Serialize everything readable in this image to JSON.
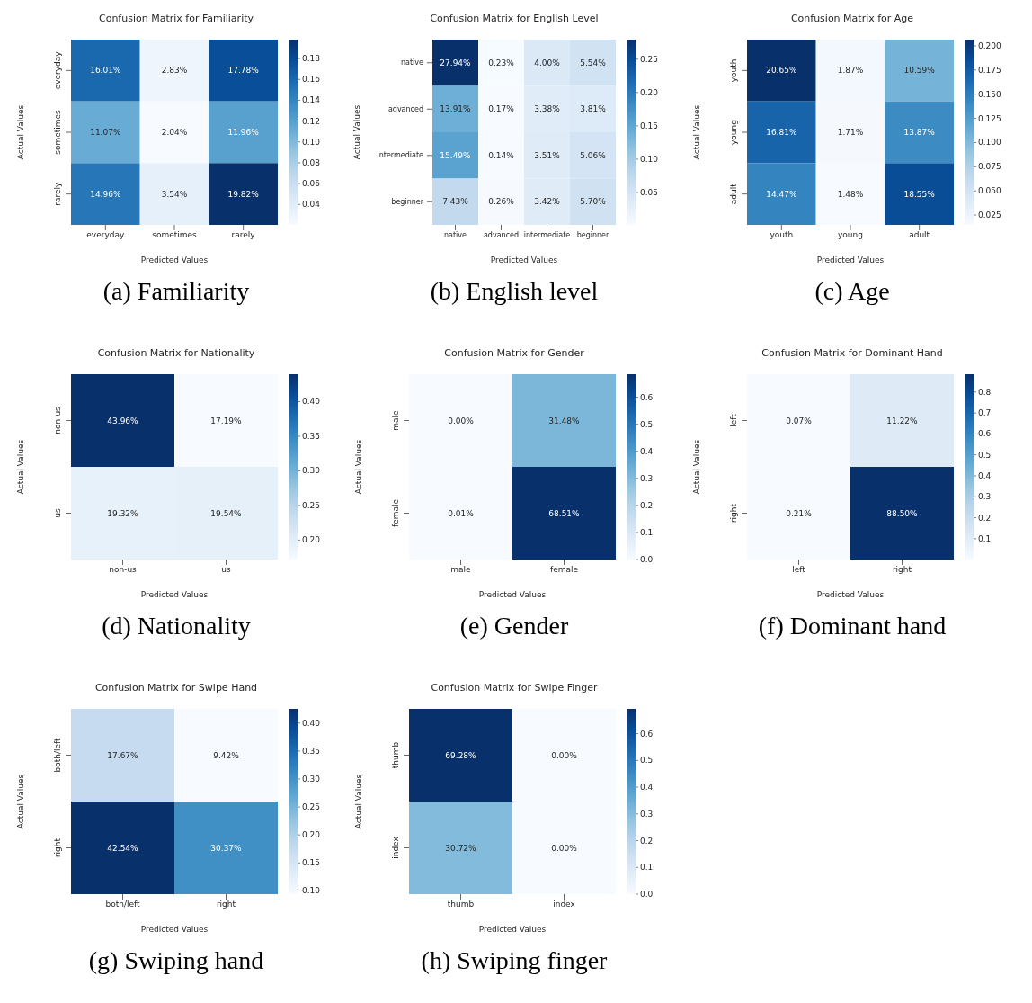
{
  "chart_data": [
    {
      "type": "heatmap",
      "title": "Confusion Matrix for Familiarity",
      "xlabel": "Predicted Values",
      "ylabel": "Actual Values",
      "categories": [
        "everyday",
        "sometimes",
        "rarely"
      ],
      "y_categories": [
        "everyday",
        "sometimes",
        "rarely"
      ],
      "cells": [
        [
          0.1601,
          0.0283,
          0.1778
        ],
        [
          0.1107,
          0.0204,
          0.1196
        ],
        [
          0.1496,
          0.0354,
          0.1982
        ]
      ],
      "cell_labels": [
        [
          "16.01%",
          "2.83%",
          "17.78%"
        ],
        [
          "11.07%",
          "2.04%",
          "11.96%"
        ],
        [
          "14.96%",
          "3.54%",
          "19.82%"
        ]
      ],
      "clim": [
        0.0204,
        0.1982
      ],
      "cticks": [
        0.04,
        0.06,
        0.08,
        {
          "value": 0.1,
          "label": "0.10"
        },
        0.12,
        0.14,
        0.16,
        0.18
      ],
      "annotations": [
        "(a) Familiarity"
      ]
    },
    {
      "type": "heatmap",
      "title": "Confusion Matrix for English Level",
      "xlabel": "Predicted Values",
      "ylabel": "Actual Values",
      "categories": [
        "native",
        "advanced",
        "intermediate",
        "beginner"
      ],
      "y_categories": [
        "native",
        "advanced",
        "intermediate",
        "beginner"
      ],
      "cells": [
        [
          0.2794,
          0.0023,
          0.04,
          0.0554
        ],
        [
          0.1391,
          0.0017,
          0.0338,
          0.0381
        ],
        [
          0.1549,
          0.0014,
          0.0351,
          0.0506
        ],
        [
          0.0743,
          0.0026,
          0.0342,
          0.057
        ]
      ],
      "cell_labels": [
        [
          "27.94%",
          "0.23%",
          "4.00%",
          "5.54%"
        ],
        [
          "13.91%",
          "0.17%",
          "3.38%",
          "3.81%"
        ],
        [
          "15.49%",
          "0.14%",
          "3.51%",
          "5.06%"
        ],
        [
          "7.43%",
          "0.26%",
          "3.42%",
          "5.70%"
        ]
      ],
      "clim": [
        0.0014,
        0.2794
      ],
      "cticks": [
        0.05,
        {
          "value": 0.1,
          "label": "0.10"
        },
        0.15,
        {
          "value": 0.2,
          "label": "0.20"
        },
        0.25
      ],
      "annotations": [
        "(b) English level"
      ]
    },
    {
      "type": "heatmap",
      "title": "Confusion Matrix for Age",
      "xlabel": "Predicted Values",
      "ylabel": "Actual Values",
      "categories": [
        "youth",
        "young",
        "adult"
      ],
      "y_categories": [
        "youth",
        "young",
        "adult"
      ],
      "cells": [
        [
          0.2065,
          0.0187,
          0.1059
        ],
        [
          0.1681,
          0.0171,
          0.1387
        ],
        [
          0.1447,
          0.0148,
          0.1855
        ]
      ],
      "cell_labels": [
        [
          "20.65%",
          "1.87%",
          "10.59%"
        ],
        [
          "16.81%",
          "1.71%",
          "13.87%"
        ],
        [
          "14.47%",
          "1.48%",
          "18.55%"
        ]
      ],
      "clim": [
        0.0148,
        0.2065
      ],
      "cticks": [
        0.025,
        {
          "value": 0.05,
          "label": "0.050"
        },
        0.075,
        {
          "value": 0.1,
          "label": "0.100"
        },
        0.125,
        {
          "value": 0.15,
          "label": "0.150"
        },
        0.175,
        {
          "value": 0.2,
          "label": "0.200"
        }
      ],
      "annotations": [
        "(c) Age"
      ]
    },
    {
      "type": "heatmap",
      "title": "Confusion Matrix for Nationality",
      "xlabel": "Predicted Values",
      "ylabel": "Actual Values",
      "categories": [
        "non-us",
        "us"
      ],
      "y_categories": [
        "non-us",
        "us"
      ],
      "cells": [
        [
          0.4396,
          0.1719
        ],
        [
          0.1932,
          0.1954
        ]
      ],
      "cell_labels": [
        [
          "43.96%",
          "17.19%"
        ],
        [
          "19.32%",
          "19.54%"
        ]
      ],
      "clim": [
        0.1719,
        0.4396
      ],
      "cticks": [
        {
          "value": 0.2,
          "label": "0.20"
        },
        0.25,
        {
          "value": 0.3,
          "label": "0.30"
        },
        0.35,
        {
          "value": 0.4,
          "label": "0.40"
        }
      ],
      "annotations": [
        "(d) Nationality"
      ]
    },
    {
      "type": "heatmap",
      "title": "Confusion Matrix for Gender",
      "xlabel": "Predicted Values",
      "ylabel": "Actual Values",
      "categories": [
        "male",
        "female"
      ],
      "y_categories": [
        "male",
        "female"
      ],
      "cells": [
        [
          0.0,
          0.3148
        ],
        [
          0.0001,
          0.6851
        ]
      ],
      "cell_labels": [
        [
          "0.00%",
          "31.48%"
        ],
        [
          "0.01%",
          "68.51%"
        ]
      ],
      "clim": [
        0.0,
        0.6851
      ],
      "cticks": [
        {
          "value": 0,
          "label": "0.0"
        },
        0.1,
        0.2,
        0.3,
        0.4,
        0.5,
        0.6
      ],
      "annotations": [
        "(e) Gender"
      ]
    },
    {
      "type": "heatmap",
      "title": "Confusion Matrix for Dominant Hand",
      "xlabel": "Predicted Values",
      "ylabel": "Actual Values",
      "categories": [
        "left",
        "right"
      ],
      "y_categories": [
        "left",
        "right"
      ],
      "cells": [
        [
          0.0007,
          0.1122
        ],
        [
          0.0021,
          0.885
        ]
      ],
      "cell_labels": [
        [
          "0.07%",
          "11.22%"
        ],
        [
          "0.21%",
          "88.50%"
        ]
      ],
      "clim": [
        0.0007,
        0.885
      ],
      "cticks": [
        0.1,
        0.2,
        0.3,
        0.4,
        0.5,
        0.6,
        0.7,
        0.8
      ],
      "annotations": [
        "(f) Dominant hand"
      ]
    },
    {
      "type": "heatmap",
      "title": "Confusion Matrix for Swipe Hand",
      "xlabel": "Predicted Values",
      "ylabel": "Actual Values",
      "categories": [
        "both/left",
        "right"
      ],
      "y_categories": [
        "both/left",
        "right"
      ],
      "cells": [
        [
          0.1767,
          0.0942
        ],
        [
          0.4254,
          0.3037
        ]
      ],
      "cell_labels": [
        [
          "17.67%",
          "9.42%"
        ],
        [
          "42.54%",
          "30.37%"
        ]
      ],
      "clim": [
        0.0942,
        0.4254
      ],
      "cticks": [
        {
          "value": 0.1,
          "label": "0.10"
        },
        0.15,
        {
          "value": 0.2,
          "label": "0.20"
        },
        0.25,
        {
          "value": 0.3,
          "label": "0.30"
        },
        0.35,
        {
          "value": 0.4,
          "label": "0.40"
        }
      ],
      "annotations": [
        "(g) Swiping hand"
      ]
    },
    {
      "type": "heatmap",
      "title": "Confusion Matrix for Swipe Finger",
      "xlabel": "Predicted Values",
      "ylabel": "Actual Values",
      "categories": [
        "thumb",
        "index"
      ],
      "y_categories": [
        "thumb",
        "index"
      ],
      "cells": [
        [
          0.6928,
          0.0
        ],
        [
          0.3072,
          0.0
        ]
      ],
      "cell_labels": [
        [
          "69.28%",
          "0.00%"
        ],
        [
          "30.72%",
          "0.00%"
        ]
      ],
      "clim": [
        0.0,
        0.6928
      ],
      "cticks": [
        {
          "value": 0,
          "label": "0.0"
        },
        0.1,
        0.2,
        0.3,
        0.4,
        0.5,
        0.6
      ],
      "annotations": [
        "(h) Swiping finger"
      ]
    }
  ]
}
